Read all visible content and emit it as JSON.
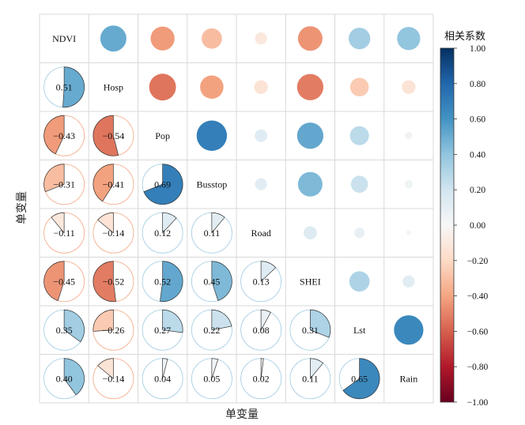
{
  "chart_data": {
    "type": "correlation-matrix",
    "variables": [
      "NDVI",
      "Hosp",
      "Pop",
      "Busstop",
      "Road",
      "SHEI",
      "Lst",
      "Rain"
    ],
    "matrix": [
      [
        1.0,
        0.51,
        -0.43,
        -0.31,
        -0.11,
        -0.45,
        0.35,
        0.4
      ],
      [
        0.51,
        1.0,
        -0.54,
        -0.41,
        -0.14,
        -0.52,
        -0.26,
        -0.14
      ],
      [
        -0.43,
        -0.54,
        1.0,
        0.69,
        0.12,
        0.52,
        0.27,
        0.04
      ],
      [
        -0.31,
        -0.41,
        0.69,
        1.0,
        0.11,
        0.45,
        0.22,
        0.05
      ],
      [
        -0.11,
        -0.14,
        0.12,
        0.11,
        1.0,
        0.13,
        0.08,
        0.02
      ],
      [
        -0.45,
        -0.52,
        0.52,
        0.45,
        0.13,
        1.0,
        0.31,
        0.11
      ],
      [
        0.35,
        -0.26,
        0.27,
        0.22,
        0.08,
        0.31,
        1.0,
        0.65
      ],
      [
        0.4,
        -0.14,
        0.04,
        0.05,
        0.02,
        0.11,
        0.65,
        1.0
      ]
    ],
    "value_labels": [
      [
        "",
        "",
        "",
        "",
        "",
        "",
        "",
        ""
      ],
      [
        "0.51",
        "",
        "",
        "",
        "",
        "",
        "",
        ""
      ],
      [
        "−0.43",
        "−0.54",
        "",
        "",
        "",
        "",
        "",
        ""
      ],
      [
        "−0.31",
        "−0.41",
        "0.69",
        "",
        "",
        "",
        "",
        ""
      ],
      [
        "−0.11",
        "−0.14",
        "0.12",
        "0.11",
        "",
        "",
        "",
        ""
      ],
      [
        "−0.45",
        "−0.52",
        "0.52",
        "0.45",
        "0.13",
        "",
        "",
        ""
      ],
      [
        "0.35",
        "−0.26",
        "0.27",
        "0.22",
        "0.08",
        "0.31",
        "",
        ""
      ],
      [
        "0.40",
        "−0.14",
        "0.04",
        "0.05",
        "0.02",
        "0.11",
        "0.65",
        ""
      ]
    ],
    "lower_triangle": "pie",
    "upper_triangle": "circle",
    "diagonal": "variable-name",
    "xlabel": "单变量",
    "ylabel": "单变量",
    "colorbar": {
      "title": "相关系数",
      "range": [
        -1.0,
        1.0
      ],
      "ticks": [
        1.0,
        0.8,
        0.6,
        0.4,
        0.2,
        0.0,
        -0.2,
        -0.4,
        -0.6,
        -0.8,
        -1.0
      ],
      "tick_labels": [
        "1.00",
        "0.80",
        "0.60",
        "0.40",
        "0.20",
        "0.00",
        "−0.20",
        "−0.40",
        "−0.60",
        "−0.80",
        "−1.00"
      ],
      "colormap": "RdBu",
      "stops": [
        {
          "v": -1.0,
          "c": "#67001f"
        },
        {
          "v": -0.8,
          "c": "#b2182b"
        },
        {
          "v": -0.6,
          "c": "#d6604d"
        },
        {
          "v": -0.4,
          "c": "#f4a582"
        },
        {
          "v": -0.2,
          "c": "#fddbc7"
        },
        {
          "v": 0.0,
          "c": "#f7f7f7"
        },
        {
          "v": 0.2,
          "c": "#d1e5f0"
        },
        {
          "v": 0.4,
          "c": "#92c5de"
        },
        {
          "v": 0.6,
          "c": "#4393c3"
        },
        {
          "v": 0.8,
          "c": "#2166ac"
        },
        {
          "v": 1.0,
          "c": "#053061"
        }
      ]
    }
  }
}
